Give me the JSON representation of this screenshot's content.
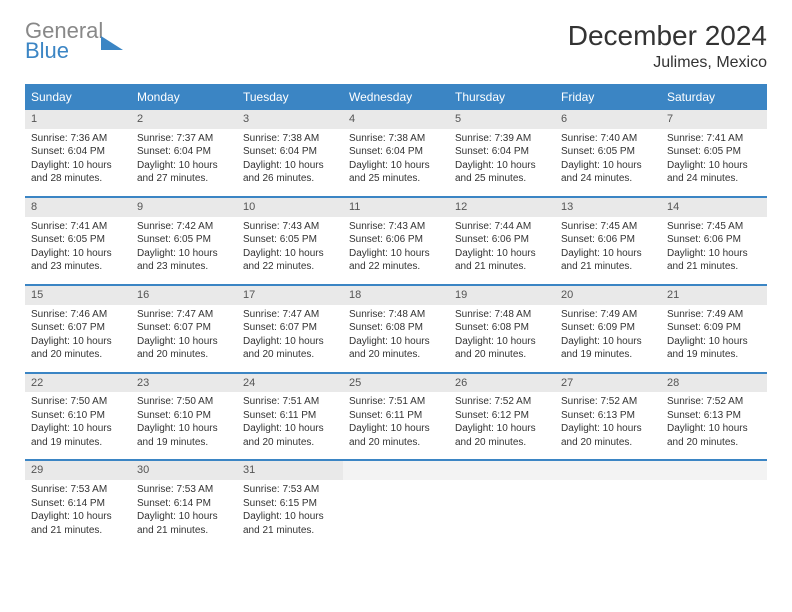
{
  "logo": {
    "line1": "General",
    "line2": "Blue"
  },
  "title": "December 2024",
  "location": "Julimes, Mexico",
  "weekdays": [
    "Sunday",
    "Monday",
    "Tuesday",
    "Wednesday",
    "Thursday",
    "Friday",
    "Saturday"
  ],
  "colors": {
    "header_bg": "#3b85c4",
    "header_text": "#ffffff",
    "daynum_bg": "#e9e9e9",
    "border": "#3b85c4",
    "text": "#333333",
    "logo_gray": "#888888",
    "logo_blue": "#3b85c4"
  },
  "weeks": [
    [
      {
        "n": "1",
        "sunrise": "Sunrise: 7:36 AM",
        "sunset": "Sunset: 6:04 PM",
        "day": "Daylight: 10 hours and 28 minutes."
      },
      {
        "n": "2",
        "sunrise": "Sunrise: 7:37 AM",
        "sunset": "Sunset: 6:04 PM",
        "day": "Daylight: 10 hours and 27 minutes."
      },
      {
        "n": "3",
        "sunrise": "Sunrise: 7:38 AM",
        "sunset": "Sunset: 6:04 PM",
        "day": "Daylight: 10 hours and 26 minutes."
      },
      {
        "n": "4",
        "sunrise": "Sunrise: 7:38 AM",
        "sunset": "Sunset: 6:04 PM",
        "day": "Daylight: 10 hours and 25 minutes."
      },
      {
        "n": "5",
        "sunrise": "Sunrise: 7:39 AM",
        "sunset": "Sunset: 6:04 PM",
        "day": "Daylight: 10 hours and 25 minutes."
      },
      {
        "n": "6",
        "sunrise": "Sunrise: 7:40 AM",
        "sunset": "Sunset: 6:05 PM",
        "day": "Daylight: 10 hours and 24 minutes."
      },
      {
        "n": "7",
        "sunrise": "Sunrise: 7:41 AM",
        "sunset": "Sunset: 6:05 PM",
        "day": "Daylight: 10 hours and 24 minutes."
      }
    ],
    [
      {
        "n": "8",
        "sunrise": "Sunrise: 7:41 AM",
        "sunset": "Sunset: 6:05 PM",
        "day": "Daylight: 10 hours and 23 minutes."
      },
      {
        "n": "9",
        "sunrise": "Sunrise: 7:42 AM",
        "sunset": "Sunset: 6:05 PM",
        "day": "Daylight: 10 hours and 23 minutes."
      },
      {
        "n": "10",
        "sunrise": "Sunrise: 7:43 AM",
        "sunset": "Sunset: 6:05 PM",
        "day": "Daylight: 10 hours and 22 minutes."
      },
      {
        "n": "11",
        "sunrise": "Sunrise: 7:43 AM",
        "sunset": "Sunset: 6:06 PM",
        "day": "Daylight: 10 hours and 22 minutes."
      },
      {
        "n": "12",
        "sunrise": "Sunrise: 7:44 AM",
        "sunset": "Sunset: 6:06 PM",
        "day": "Daylight: 10 hours and 21 minutes."
      },
      {
        "n": "13",
        "sunrise": "Sunrise: 7:45 AM",
        "sunset": "Sunset: 6:06 PM",
        "day": "Daylight: 10 hours and 21 minutes."
      },
      {
        "n": "14",
        "sunrise": "Sunrise: 7:45 AM",
        "sunset": "Sunset: 6:06 PM",
        "day": "Daylight: 10 hours and 21 minutes."
      }
    ],
    [
      {
        "n": "15",
        "sunrise": "Sunrise: 7:46 AM",
        "sunset": "Sunset: 6:07 PM",
        "day": "Daylight: 10 hours and 20 minutes."
      },
      {
        "n": "16",
        "sunrise": "Sunrise: 7:47 AM",
        "sunset": "Sunset: 6:07 PM",
        "day": "Daylight: 10 hours and 20 minutes."
      },
      {
        "n": "17",
        "sunrise": "Sunrise: 7:47 AM",
        "sunset": "Sunset: 6:07 PM",
        "day": "Daylight: 10 hours and 20 minutes."
      },
      {
        "n": "18",
        "sunrise": "Sunrise: 7:48 AM",
        "sunset": "Sunset: 6:08 PM",
        "day": "Daylight: 10 hours and 20 minutes."
      },
      {
        "n": "19",
        "sunrise": "Sunrise: 7:48 AM",
        "sunset": "Sunset: 6:08 PM",
        "day": "Daylight: 10 hours and 20 minutes."
      },
      {
        "n": "20",
        "sunrise": "Sunrise: 7:49 AM",
        "sunset": "Sunset: 6:09 PM",
        "day": "Daylight: 10 hours and 19 minutes."
      },
      {
        "n": "21",
        "sunrise": "Sunrise: 7:49 AM",
        "sunset": "Sunset: 6:09 PM",
        "day": "Daylight: 10 hours and 19 minutes."
      }
    ],
    [
      {
        "n": "22",
        "sunrise": "Sunrise: 7:50 AM",
        "sunset": "Sunset: 6:10 PM",
        "day": "Daylight: 10 hours and 19 minutes."
      },
      {
        "n": "23",
        "sunrise": "Sunrise: 7:50 AM",
        "sunset": "Sunset: 6:10 PM",
        "day": "Daylight: 10 hours and 19 minutes."
      },
      {
        "n": "24",
        "sunrise": "Sunrise: 7:51 AM",
        "sunset": "Sunset: 6:11 PM",
        "day": "Daylight: 10 hours and 20 minutes."
      },
      {
        "n": "25",
        "sunrise": "Sunrise: 7:51 AM",
        "sunset": "Sunset: 6:11 PM",
        "day": "Daylight: 10 hours and 20 minutes."
      },
      {
        "n": "26",
        "sunrise": "Sunrise: 7:52 AM",
        "sunset": "Sunset: 6:12 PM",
        "day": "Daylight: 10 hours and 20 minutes."
      },
      {
        "n": "27",
        "sunrise": "Sunrise: 7:52 AM",
        "sunset": "Sunset: 6:13 PM",
        "day": "Daylight: 10 hours and 20 minutes."
      },
      {
        "n": "28",
        "sunrise": "Sunrise: 7:52 AM",
        "sunset": "Sunset: 6:13 PM",
        "day": "Daylight: 10 hours and 20 minutes."
      }
    ],
    [
      {
        "n": "29",
        "sunrise": "Sunrise: 7:53 AM",
        "sunset": "Sunset: 6:14 PM",
        "day": "Daylight: 10 hours and 21 minutes."
      },
      {
        "n": "30",
        "sunrise": "Sunrise: 7:53 AM",
        "sunset": "Sunset: 6:14 PM",
        "day": "Daylight: 10 hours and 21 minutes."
      },
      {
        "n": "31",
        "sunrise": "Sunrise: 7:53 AM",
        "sunset": "Sunset: 6:15 PM",
        "day": "Daylight: 10 hours and 21 minutes."
      },
      null,
      null,
      null,
      null
    ]
  ]
}
